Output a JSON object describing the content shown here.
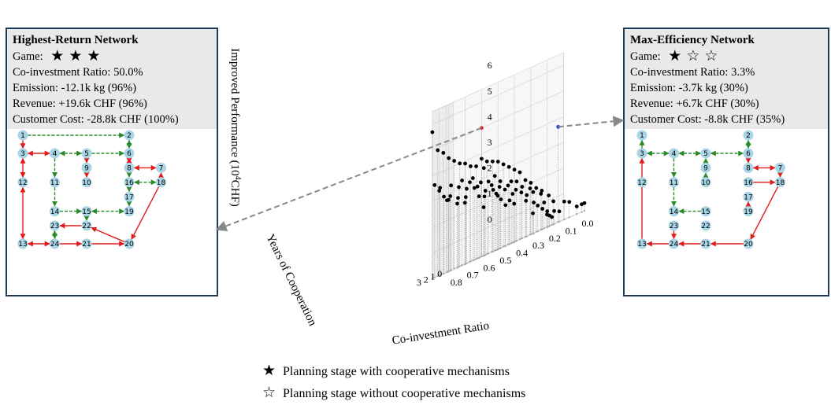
{
  "left_panel": {
    "title": "Highest-Return Network",
    "game_label": "Game:",
    "game_stars": [
      "filled",
      "filled",
      "filled"
    ],
    "lines": [
      "Co-investment Ratio: 50.0%",
      "Emission: -12.1k kg (96%)",
      "Revenue: +19.6k CHF (96%)",
      "Customer Cost: -28.8k CHF (100%)"
    ],
    "network": {
      "nodes": [
        {
          "id": "1",
          "x": 0,
          "y": 0
        },
        {
          "id": "2",
          "x": 5,
          "y": 0
        },
        {
          "id": "3",
          "x": 0,
          "y": 1
        },
        {
          "id": "4",
          "x": 1.5,
          "y": 1
        },
        {
          "id": "5",
          "x": 3,
          "y": 1
        },
        {
          "id": "6",
          "x": 5,
          "y": 1
        },
        {
          "id": "9",
          "x": 3,
          "y": 1.8
        },
        {
          "id": "8",
          "x": 5,
          "y": 1.8
        },
        {
          "id": "7",
          "x": 6.5,
          "y": 1.8
        },
        {
          "id": "12",
          "x": 0,
          "y": 2.6
        },
        {
          "id": "11",
          "x": 1.5,
          "y": 2.6
        },
        {
          "id": "10",
          "x": 3,
          "y": 2.6
        },
        {
          "id": "16",
          "x": 5,
          "y": 2.6
        },
        {
          "id": "18",
          "x": 6.5,
          "y": 2.6
        },
        {
          "id": "17",
          "x": 5,
          "y": 3.4
        },
        {
          "id": "14",
          "x": 1.5,
          "y": 4.2
        },
        {
          "id": "15",
          "x": 3,
          "y": 4.2
        },
        {
          "id": "19",
          "x": 5,
          "y": 4.2
        },
        {
          "id": "23",
          "x": 1.5,
          "y": 5
        },
        {
          "id": "22",
          "x": 3,
          "y": 5
        },
        {
          "id": "13",
          "x": 0,
          "y": 6
        },
        {
          "id": "24",
          "x": 1.5,
          "y": 6
        },
        {
          "id": "21",
          "x": 3,
          "y": 6
        },
        {
          "id": "20",
          "x": 5,
          "y": 6
        }
      ],
      "edges": [
        [
          "1",
          "2",
          "g",
          false
        ],
        [
          "1",
          "3",
          "r",
          false
        ],
        [
          "3",
          "4",
          "r",
          true
        ],
        [
          "4",
          "5",
          "g",
          true
        ],
        [
          "5",
          "6",
          "g",
          false
        ],
        [
          "2",
          "6",
          "g",
          true
        ],
        [
          "6",
          "8",
          "r",
          true
        ],
        [
          "8",
          "7",
          "r",
          true
        ],
        [
          "5",
          "9",
          "r",
          false
        ],
        [
          "9",
          "10",
          "r",
          false
        ],
        [
          "3",
          "12",
          "r",
          true
        ],
        [
          "4",
          "11",
          "g",
          false
        ],
        [
          "11",
          "14",
          "g",
          false
        ],
        [
          "8",
          "16",
          "g",
          false
        ],
        [
          "16",
          "18",
          "g",
          true
        ],
        [
          "18",
          "7",
          "r",
          false
        ],
        [
          "16",
          "17",
          "g",
          false
        ],
        [
          "17",
          "19",
          "g",
          false
        ],
        [
          "14",
          "15",
          "g",
          false
        ],
        [
          "15",
          "19",
          "g",
          true
        ],
        [
          "15",
          "22",
          "g",
          false
        ],
        [
          "22",
          "23",
          "r",
          false
        ],
        [
          "23",
          "24",
          "g",
          true
        ],
        [
          "12",
          "13",
          "r",
          true
        ],
        [
          "13",
          "24",
          "r",
          true
        ],
        [
          "24",
          "21",
          "r",
          false
        ],
        [
          "21",
          "20",
          "r",
          false
        ],
        [
          "20",
          "22",
          "r",
          false
        ],
        [
          "18",
          "20",
          "r",
          false
        ]
      ]
    }
  },
  "right_panel": {
    "title": "Max-Efficiency Network",
    "game_label": "Game:",
    "game_stars": [
      "filled",
      "outline",
      "outline"
    ],
    "lines": [
      "Co-investment Ratio: 3.3%",
      "Emission: -3.7k kg (30%)",
      "Revenue: +6.7k CHF (30%)",
      "Customer Cost: -8.8k CHF (35%)"
    ],
    "network": {
      "nodes": [
        {
          "id": "1",
          "x": 0,
          "y": 0
        },
        {
          "id": "2",
          "x": 5,
          "y": 0
        },
        {
          "id": "3",
          "x": 0,
          "y": 1
        },
        {
          "id": "4",
          "x": 1.5,
          "y": 1
        },
        {
          "id": "5",
          "x": 3,
          "y": 1
        },
        {
          "id": "6",
          "x": 5,
          "y": 1
        },
        {
          "id": "9",
          "x": 3,
          "y": 1.8
        },
        {
          "id": "8",
          "x": 5,
          "y": 1.8
        },
        {
          "id": "7",
          "x": 6.5,
          "y": 1.8
        },
        {
          "id": "12",
          "x": 0,
          "y": 2.6
        },
        {
          "id": "11",
          "x": 1.5,
          "y": 2.6
        },
        {
          "id": "10",
          "x": 3,
          "y": 2.6
        },
        {
          "id": "16",
          "x": 5,
          "y": 2.6
        },
        {
          "id": "18",
          "x": 6.5,
          "y": 2.6
        },
        {
          "id": "17",
          "x": 5,
          "y": 3.4
        },
        {
          "id": "14",
          "x": 1.5,
          "y": 4.2
        },
        {
          "id": "15",
          "x": 3,
          "y": 4.2
        },
        {
          "id": "19",
          "x": 5,
          "y": 4.2
        },
        {
          "id": "23",
          "x": 1.5,
          "y": 5
        },
        {
          "id": "22",
          "x": 3,
          "y": 5
        },
        {
          "id": "13",
          "x": 0,
          "y": 6
        },
        {
          "id": "24",
          "x": 1.5,
          "y": 6
        },
        {
          "id": "21",
          "x": 3,
          "y": 6
        },
        {
          "id": "20",
          "x": 5,
          "y": 6
        }
      ],
      "edges": [
        [
          "3",
          "1",
          "g",
          false
        ],
        [
          "3",
          "4",
          "g",
          true
        ],
        [
          "4",
          "5",
          "g",
          true
        ],
        [
          "5",
          "6",
          "g",
          true
        ],
        [
          "2",
          "6",
          "g",
          true
        ],
        [
          "6",
          "8",
          "r",
          false
        ],
        [
          "8",
          "7",
          "r",
          true
        ],
        [
          "7",
          "18",
          "r",
          false
        ],
        [
          "9",
          "5",
          "g",
          false
        ],
        [
          "10",
          "9",
          "g",
          false
        ],
        [
          "13",
          "3",
          "r",
          false
        ],
        [
          "4",
          "11",
          "g",
          false
        ],
        [
          "11",
          "14",
          "g",
          false
        ],
        [
          "15",
          "14",
          "g",
          false
        ],
        [
          "16",
          "18",
          "r",
          false
        ],
        [
          "19",
          "17",
          "r",
          false
        ],
        [
          "23",
          "24",
          "r",
          false
        ],
        [
          "24",
          "13",
          "r",
          false
        ],
        [
          "21",
          "24",
          "r",
          false
        ],
        [
          "20",
          "21",
          "r",
          false
        ],
        [
          "18",
          "20",
          "r",
          false
        ]
      ]
    }
  },
  "chart_data": {
    "type": "scatter",
    "projection": "3d",
    "xlabel": "Co-investment Ratio",
    "ylabel": "Years of Cooperation",
    "zlabel": "Improved Performance (10",
    "zlabel_sup": "4",
    "zlabel_unit": "CHF)",
    "xlim": [
      0.0,
      0.8
    ],
    "ylim": [
      0,
      3
    ],
    "zlim": [
      0,
      6.5
    ],
    "xticks": [
      0.0,
      0.1,
      0.2,
      0.3,
      0.4,
      0.5,
      0.6,
      0.7,
      0.8
    ],
    "yticks": [
      0,
      1,
      2,
      3
    ],
    "zticks": [
      0,
      1,
      2,
      3,
      4,
      5,
      6
    ],
    "grid": true,
    "points": [
      [
        0.0,
        0,
        0.3
      ],
      [
        0.017,
        0,
        0.3
      ],
      [
        0.033,
        0.33,
        0.3
      ],
      [
        0.05,
        1,
        0.6
      ],
      [
        0.067,
        1.33,
        0.7
      ],
      [
        0.083,
        1.67,
        0.4
      ],
      [
        0.1,
        2,
        0.5
      ],
      [
        0.1,
        2.33,
        0.3
      ],
      [
        0.1,
        2.67,
        0.4
      ],
      [
        0.1,
        3,
        0.6
      ],
      [
        0.133,
        1.33,
        0.9
      ],
      [
        0.133,
        2,
        1.2
      ],
      [
        0.133,
        2.67,
        1.0
      ],
      [
        0.133,
        3,
        1.5
      ],
      [
        0.167,
        2.33,
        1.4
      ],
      [
        0.167,
        3,
        1.7
      ],
      [
        0.2,
        0.67,
        0.5
      ],
      [
        0.2,
        1.33,
        0.8
      ],
      [
        0.2,
        2,
        1.0
      ],
      [
        0.2,
        2.67,
        1.6
      ],
      [
        0.2,
        3,
        2.0
      ],
      [
        0.233,
        2.33,
        1.8
      ],
      [
        0.233,
        3,
        2.2
      ],
      [
        0.267,
        1,
        1.2
      ],
      [
        0.267,
        2,
        1.6
      ],
      [
        0.267,
        2.67,
        2.0
      ],
      [
        0.267,
        3,
        2.6
      ],
      [
        0.3,
        0.33,
        0.8
      ],
      [
        0.3,
        1.33,
        1.4
      ],
      [
        0.3,
        2,
        1.8
      ],
      [
        0.3,
        2.67,
        2.3
      ],
      [
        0.3,
        3,
        2.8
      ],
      [
        0.333,
        2,
        2.0
      ],
      [
        0.333,
        2.67,
        2.4
      ],
      [
        0.333,
        3,
        3.0
      ],
      [
        0.367,
        1.67,
        1.9
      ],
      [
        0.367,
        2.33,
        2.3
      ],
      [
        0.367,
        3,
        3.2
      ],
      [
        0.4,
        0.67,
        1.5
      ],
      [
        0.4,
        1.33,
        1.7
      ],
      [
        0.4,
        2,
        2.2
      ],
      [
        0.4,
        2.67,
        2.6
      ],
      [
        0.4,
        3,
        3.4
      ],
      [
        0.433,
        2,
        2.4
      ],
      [
        0.433,
        2.67,
        2.9
      ],
      [
        0.433,
        3,
        3.5
      ],
      [
        0.467,
        0.33,
        1.6
      ],
      [
        0.467,
        1,
        1.9
      ],
      [
        0.467,
        1.67,
        2.2
      ],
      [
        0.467,
        2.33,
        2.6
      ],
      [
        0.467,
        3,
        3.6
      ],
      [
        0.5,
        0.67,
        2.1
      ],
      [
        0.5,
        1.33,
        2.4
      ],
      [
        0.5,
        2,
        2.8
      ],
      [
        0.5,
        2.67,
        3.4
      ],
      [
        0.5,
        3,
        3.8
      ],
      [
        0.533,
        1.67,
        2.5
      ],
      [
        0.533,
        2.33,
        2.9
      ],
      [
        0.533,
        3,
        3.6
      ],
      [
        0.567,
        1,
        2.3
      ],
      [
        0.567,
        2,
        2.8
      ],
      [
        0.567,
        2.67,
        3.2
      ],
      [
        0.567,
        3,
        3.7
      ],
      [
        0.6,
        0.33,
        1.9
      ],
      [
        0.6,
        1,
        2.4
      ],
      [
        0.6,
        1.67,
        2.8
      ],
      [
        0.6,
        2.33,
        3.1
      ],
      [
        0.6,
        3,
        3.9
      ],
      [
        0.633,
        2,
        2.9
      ],
      [
        0.633,
        2.67,
        3.3
      ],
      [
        0.633,
        3,
        4.0
      ],
      [
        0.667,
        1.33,
        2.6
      ],
      [
        0.667,
        2.33,
        3.1
      ],
      [
        0.667,
        3,
        4.2
      ],
      [
        0.7,
        0.67,
        2.4
      ],
      [
        0.7,
        1.67,
        2.7
      ],
      [
        0.7,
        2.67,
        3.3
      ],
      [
        0.7,
        3,
        4.4
      ],
      [
        0.733,
        1,
        2.5
      ],
      [
        0.733,
        2,
        2.9
      ],
      [
        0.733,
        3,
        4.7
      ],
      [
        0.767,
        1.67,
        2.8
      ],
      [
        0.767,
        2.67,
        3.4
      ],
      [
        0.767,
        3,
        4.9
      ],
      [
        0.8,
        0.67,
        2.8
      ],
      [
        0.8,
        1.33,
        3.0
      ],
      [
        0.8,
        2,
        3.3
      ],
      [
        0.8,
        2.67,
        3.6
      ],
      [
        0.8,
        3,
        5.7
      ]
    ],
    "highlight_points": [
      {
        "marker": "red",
        "x": 0.5,
        "y": 3,
        "z": 5.0
      },
      {
        "marker": "blue",
        "x": 0.033,
        "y": 3,
        "z": 3.7
      }
    ]
  },
  "legend": {
    "items": [
      {
        "symbol": "★",
        "label": "Planning stage with cooperative mechanisms"
      },
      {
        "symbol": "☆",
        "label": "Planning stage without cooperative mechanisms"
      }
    ]
  },
  "colors": {
    "panel_border": "#1f3b57",
    "panel_header": "#e9e9e9",
    "node_fill": "#a9d5e6",
    "edge_red": "#e01b1b",
    "edge_green": "#2a8a2a",
    "point": "#000000",
    "highlight_red": "#e02020",
    "highlight_blue": "#1f3fe0",
    "leader": "#888888"
  }
}
